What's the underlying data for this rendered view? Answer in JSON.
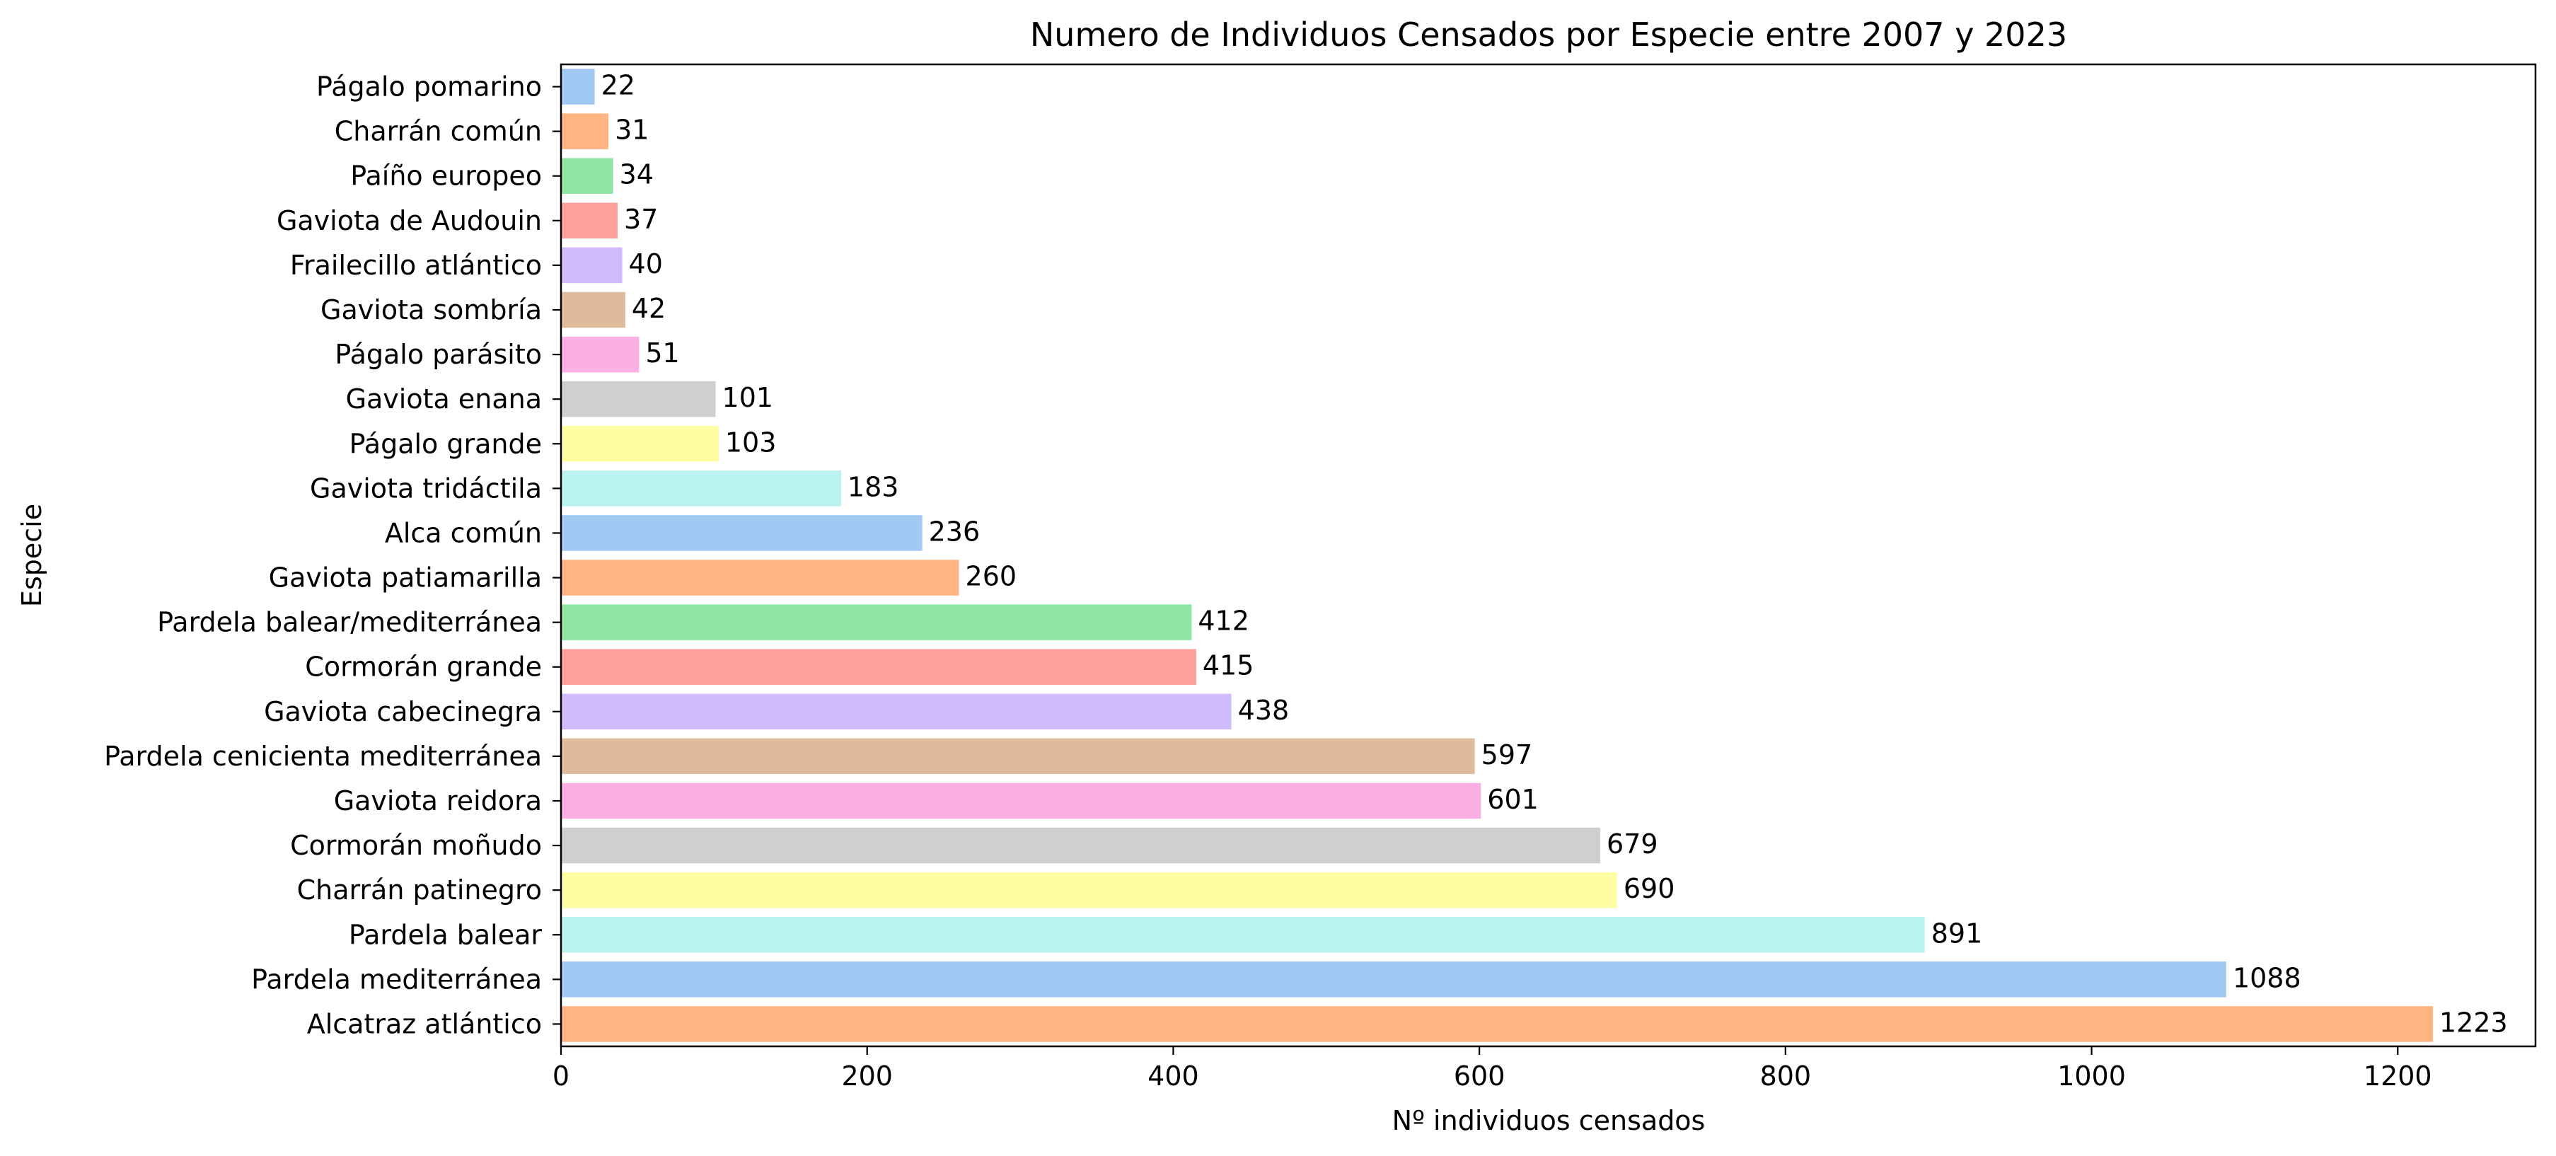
{
  "chart_data": {
    "type": "bar",
    "orientation": "horizontal",
    "title": "Numero de Individuos Censados por Especie entre 2007 y 2023",
    "xlabel": "Nº individuos censados",
    "ylabel": "Especie",
    "xlim": [
      0,
      1290
    ],
    "xticks": [
      0,
      200,
      400,
      600,
      800,
      1000,
      1200
    ],
    "grid": false,
    "categories": [
      "Págalo pomarino",
      "Charrán común",
      "Paíño europeo",
      "Gaviota de Audouin",
      "Frailecillo atlántico",
      "Gaviota sombría",
      "Págalo parásito",
      "Gaviota enana",
      "Págalo grande",
      "Gaviota tridáctila",
      "Alca común",
      "Gaviota patiamarilla",
      "Pardela balear/mediterránea",
      "Cormorán grande",
      "Gaviota cabecinegra",
      "Pardela cenicienta mediterránea",
      "Gaviota reidora",
      "Cormorán moñudo",
      "Charrán patinegro",
      "Pardela balear",
      "Pardela mediterránea",
      "Alcatraz atlántico"
    ],
    "values": [
      22,
      31,
      34,
      37,
      40,
      42,
      51,
      101,
      103,
      183,
      236,
      260,
      412,
      415,
      438,
      597,
      601,
      679,
      690,
      891,
      1088,
      1223
    ],
    "colors": [
      "#a1c9f4",
      "#ffb482",
      "#8de5a1",
      "#ff9f9b",
      "#d0bbff",
      "#debb9b",
      "#fab0e4",
      "#cfcfcf",
      "#fffea3",
      "#b9f2f0"
    ]
  }
}
